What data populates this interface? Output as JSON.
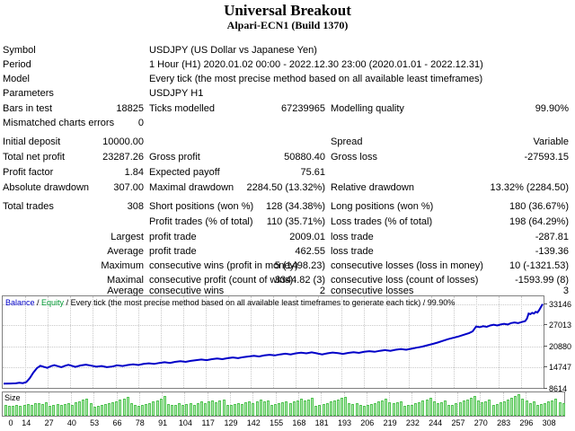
{
  "report": {
    "title": "Universal Breakout",
    "subtitle": "Alpari-ECN1 (Build 1370)",
    "rows": [
      {
        "cells": [
          "Symbol",
          "",
          "USDJPY (US Dollar vs Japanese Yen)",
          "",
          "",
          ""
        ],
        "wide": true
      },
      {
        "cells": [
          "Period",
          "",
          "1 Hour (H1) 2020.01.02 00:00 - 2022.12.30 23:00 (2020.01.01 - 2022.12.31)",
          "",
          "",
          ""
        ],
        "wide": true
      },
      {
        "cells": [
          "Model",
          "",
          "Every tick (the most precise method based on all available least timeframes)",
          "",
          "",
          ""
        ],
        "wide": true
      },
      {
        "cells": [
          "Parameters",
          "",
          "USDJPY H1",
          "",
          "",
          ""
        ],
        "wide": true
      },
      {
        "cells": [
          "Bars in test",
          "18825",
          "Ticks modelled",
          "67239965",
          "Modelling quality",
          "99.90%"
        ]
      },
      {
        "cells": [
          "Mismatched charts errors",
          "0",
          "",
          "",
          "",
          ""
        ]
      },
      {
        "cells": [
          "Initial deposit",
          "10000.00",
          "",
          "",
          "Spread",
          "Variable"
        ]
      },
      {
        "cells": [
          "Total net profit",
          "23287.26",
          "Gross profit",
          "50880.40",
          "Gross loss",
          "-27593.15"
        ]
      },
      {
        "cells": [
          "Profit factor",
          "1.84",
          "Expected payoff",
          "75.61",
          "",
          ""
        ]
      },
      {
        "cells": [
          "Absolute drawdown",
          "307.00",
          "Maximal drawdown",
          "2284.50 (13.32%)",
          "Relative drawdown",
          "13.32% (2284.50)"
        ]
      },
      {
        "cells": [
          "Total trades",
          "308",
          "Short positions (won %)",
          "128 (34.38%)",
          "Long positions (won %)",
          "180 (36.67%)"
        ]
      },
      {
        "cells": [
          "",
          "",
          "Profit trades (% of total)",
          "110 (35.71%)",
          "Loss trades (% of total)",
          "198 (64.29%)"
        ]
      },
      {
        "cells": [
          "",
          "Largest",
          "profit trade",
          "2009.01",
          "loss trade",
          "-287.81"
        ]
      },
      {
        "cells": [
          "",
          "Average",
          "profit trade",
          "462.55",
          "loss trade",
          "-139.36"
        ]
      },
      {
        "cells": [
          "",
          "Maximum",
          "consecutive wins (profit in money)",
          "5 (1498.23)",
          "consecutive losses (loss in money)",
          "10 (-1321.53)"
        ]
      },
      {
        "cells": [
          "",
          "Maximal",
          "consecutive profit (count of wins)",
          "3344.82 (3)",
          "consecutive loss (count of losses)",
          "-1593.99 (8)"
        ]
      },
      {
        "cells": [
          "",
          "Average",
          "consecutive wins",
          "2",
          "consecutive losses",
          "3"
        ]
      }
    ]
  },
  "legend": {
    "balance_label": "Balance",
    "separator": " / ",
    "equity_label": "Equity",
    "rest": "Every tick (the most precise method based on all available least timeframes to generate each tick) / 99.90%"
  },
  "colors": {
    "balance_line": "#0000c8",
    "equity_label": "#009933",
    "bar_fill": "#b4ecb4",
    "bar_border": "#4fc24f",
    "grid": "#c9c9c9",
    "frame": "#808080"
  },
  "chart_data": [
    {
      "type": "line",
      "name": "balance-equity-chart",
      "ylabel_side": "right",
      "ylim": [
        8614,
        35500
      ],
      "yticks": [
        33146,
        27013,
        20880,
        14747,
        8614
      ],
      "xlim": [
        0,
        308
      ],
      "grid": true,
      "series": [
        {
          "name": "Balance",
          "color": "#0000c8",
          "points": [
            [
              0,
              10000
            ],
            [
              4,
              10020
            ],
            [
              7,
              10080
            ],
            [
              9,
              10250
            ],
            [
              11,
              10150
            ],
            [
              13,
              10450
            ],
            [
              15,
              11600
            ],
            [
              17,
              13200
            ],
            [
              19,
              14500
            ],
            [
              21,
              15200
            ],
            [
              23,
              14900
            ],
            [
              25,
              14600
            ],
            [
              27,
              15100
            ],
            [
              29,
              15400
            ],
            [
              31,
              15100
            ],
            [
              33,
              14800
            ],
            [
              35,
              15200
            ],
            [
              37,
              15500
            ],
            [
              39,
              15200
            ],
            [
              41,
              14900
            ],
            [
              44,
              15300
            ],
            [
              47,
              15550
            ],
            [
              50,
              15250
            ],
            [
              53,
              14950
            ],
            [
              56,
              15150
            ],
            [
              59,
              14800
            ],
            [
              62,
              15000
            ],
            [
              65,
              15350
            ],
            [
              68,
              15150
            ],
            [
              71,
              15450
            ],
            [
              74,
              15650
            ],
            [
              77,
              15450
            ],
            [
              80,
              15750
            ],
            [
              83,
              15950
            ],
            [
              86,
              15750
            ],
            [
              89,
              16050
            ],
            [
              92,
              16250
            ],
            [
              95,
              16050
            ],
            [
              98,
              16350
            ],
            [
              101,
              16550
            ],
            [
              104,
              16350
            ],
            [
              107,
              16650
            ],
            [
              110,
              16850
            ],
            [
              113,
              17050
            ],
            [
              116,
              16850
            ],
            [
              119,
              17150
            ],
            [
              122,
              17350
            ],
            [
              125,
              17150
            ],
            [
              128,
              17450
            ],
            [
              131,
              17650
            ],
            [
              134,
              17450
            ],
            [
              137,
              17750
            ],
            [
              140,
              17950
            ],
            [
              143,
              18150
            ],
            [
              146,
              17950
            ],
            [
              149,
              18250
            ],
            [
              152,
              18450
            ],
            [
              155,
              18250
            ],
            [
              158,
              18550
            ],
            [
              161,
              18750
            ],
            [
              164,
              18550
            ],
            [
              167,
              18850
            ],
            [
              170,
              19050
            ],
            [
              173,
              18850
            ],
            [
              176,
              19150
            ],
            [
              179,
              18850
            ],
            [
              182,
              18550
            ],
            [
              185,
              18850
            ],
            [
              188,
              19100
            ],
            [
              191,
              18900
            ],
            [
              194,
              18700
            ],
            [
              197,
              19000
            ],
            [
              200,
              19200
            ],
            [
              203,
              19000
            ],
            [
              206,
              19300
            ],
            [
              209,
              19500
            ],
            [
              212,
              19300
            ],
            [
              215,
              19600
            ],
            [
              218,
              19800
            ],
            [
              221,
              19600
            ],
            [
              224,
              19900
            ],
            [
              227,
              20100
            ],
            [
              230,
              19900
            ],
            [
              233,
              20200
            ],
            [
              236,
              20500
            ],
            [
              239,
              20800
            ],
            [
              242,
              21200
            ],
            [
              245,
              21600
            ],
            [
              248,
              22000
            ],
            [
              251,
              22500
            ],
            [
              254,
              23000
            ],
            [
              257,
              23400
            ],
            [
              260,
              23800
            ],
            [
              263,
              24300
            ],
            [
              266,
              24800
            ],
            [
              268,
              25300
            ],
            [
              270,
              26700
            ],
            [
              272,
              26500
            ],
            [
              274,
              26800
            ],
            [
              276,
              26600
            ],
            [
              278,
              27000
            ],
            [
              280,
              27200
            ],
            [
              282,
              27000
            ],
            [
              284,
              27300
            ],
            [
              286,
              27500
            ],
            [
              288,
              27300
            ],
            [
              290,
              27700
            ],
            [
              292,
              27900
            ],
            [
              294,
              27700
            ],
            [
              296,
              28000
            ],
            [
              298,
              28300
            ],
            [
              299,
              29000
            ],
            [
              300,
              30500
            ],
            [
              301,
              30300
            ],
            [
              302,
              30700
            ],
            [
              303,
              30500
            ],
            [
              304,
              31000
            ],
            [
              305,
              30800
            ],
            [
              306,
              31500
            ],
            [
              307,
              32400
            ],
            [
              308,
              33287
            ]
          ]
        }
      ],
      "xticks": [
        0,
        14,
        27,
        40,
        53,
        66,
        78,
        91,
        104,
        117,
        129,
        142,
        155,
        168,
        181,
        193,
        206,
        219,
        232,
        244,
        257,
        270,
        283,
        296,
        308
      ]
    },
    {
      "type": "bar",
      "name": "trade-size-chart",
      "title": "Size",
      "values": [
        0.5,
        0.44,
        0.47,
        0.5,
        0.46,
        0.52,
        0.55,
        0.49,
        0.57,
        0.6,
        0.54,
        0.62,
        0.46,
        0.5,
        0.54,
        0.48,
        0.56,
        0.6,
        0.52,
        0.62,
        0.68,
        0.74,
        0.8,
        0.6,
        0.42,
        0.46,
        0.5,
        0.54,
        0.58,
        0.63,
        0.68,
        0.74,
        0.8,
        0.88,
        0.6,
        0.5,
        0.46,
        0.5,
        0.55,
        0.6,
        0.65,
        0.72,
        0.8,
        0.9,
        0.55,
        0.48,
        0.52,
        0.57,
        0.5,
        0.54,
        0.58,
        0.52,
        0.6,
        0.65,
        0.58,
        0.66,
        0.72,
        0.64,
        0.7,
        0.76,
        0.48,
        0.52,
        0.56,
        0.6,
        0.55,
        0.62,
        0.66,
        0.6,
        0.68,
        0.74,
        0.66,
        0.72,
        0.5,
        0.54,
        0.58,
        0.63,
        0.68,
        0.6,
        0.66,
        0.72,
        0.78,
        0.7,
        0.76,
        0.82,
        0.46,
        0.5,
        0.55,
        0.6,
        0.65,
        0.7,
        0.76,
        0.82,
        0.88,
        0.6,
        0.54,
        0.58,
        0.5,
        0.46,
        0.52,
        0.56,
        0.6,
        0.66,
        0.72,
        0.78,
        0.64,
        0.58,
        0.62,
        0.68,
        0.44,
        0.48,
        0.52,
        0.58,
        0.64,
        0.7,
        0.76,
        0.82,
        0.68,
        0.6,
        0.64,
        0.7,
        0.48,
        0.52,
        0.58,
        0.64,
        0.7,
        0.76,
        0.84,
        0.9,
        0.72,
        0.64,
        0.68,
        0.74,
        0.5,
        0.56,
        0.62,
        0.68,
        0.74,
        0.82,
        0.9,
        0.98,
        0.8,
        0.7,
        0.6,
        0.66,
        0.52,
        0.56,
        0.6,
        0.66,
        0.72,
        0.78,
        0.62,
        0.58
      ]
    }
  ]
}
